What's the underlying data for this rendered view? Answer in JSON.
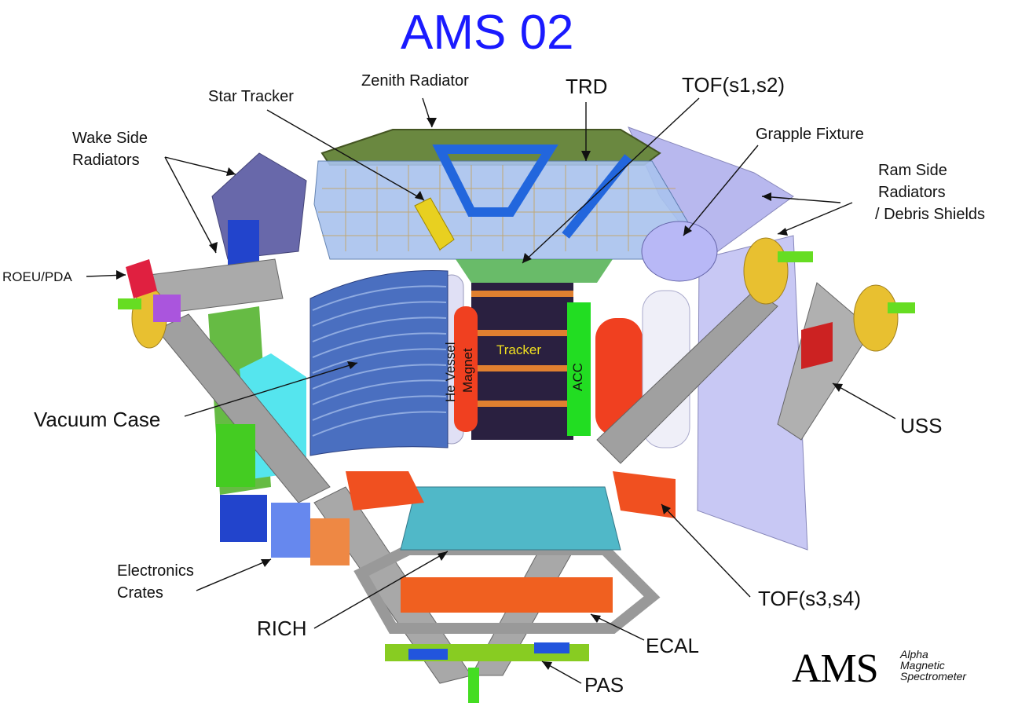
{
  "title": "AMS 02",
  "labels": {
    "zenith_radiator": "Zenith Radiator",
    "star_tracker": "Star Tracker",
    "trd": "TRD",
    "tof_s1_s2": "TOF(s1,s2)",
    "grapple_fixture": "Grapple Fixture",
    "wake_side_radiators": [
      "Wake Side",
      "Radiators"
    ],
    "ram_side_radiators": [
      "Ram Side",
      "Radiators",
      "/ Debris Shields"
    ],
    "roeu_pda": "ROEU/PDA",
    "vacuum_case": "Vacuum Case",
    "uss": "USS",
    "electronics_crates": [
      "Electronics",
      "Crates"
    ],
    "rich": "RICH",
    "tof_s3_s4": "TOF(s3,s4)",
    "ecal": "ECAL",
    "pas": "PAS",
    "he_vessel": "He Vessel",
    "magnet": "Magnet",
    "tracker": "Tracker",
    "acc": "ACC"
  },
  "logo": {
    "acronym": "AMS",
    "expansion": [
      "Alpha",
      "Magnetic",
      "Spectrometer"
    ]
  },
  "colors": {
    "title": "#1a1aff",
    "structure_grey": "#9a9a9a",
    "vacuum_case_blue": "#4a6fc0",
    "magnet_red": "#f04020",
    "acc_green": "#22dd22",
    "radiator_lavender": "#c8c8f4",
    "trd_blue": "#9ab8e8",
    "tracker_dark": "#2a2040"
  }
}
